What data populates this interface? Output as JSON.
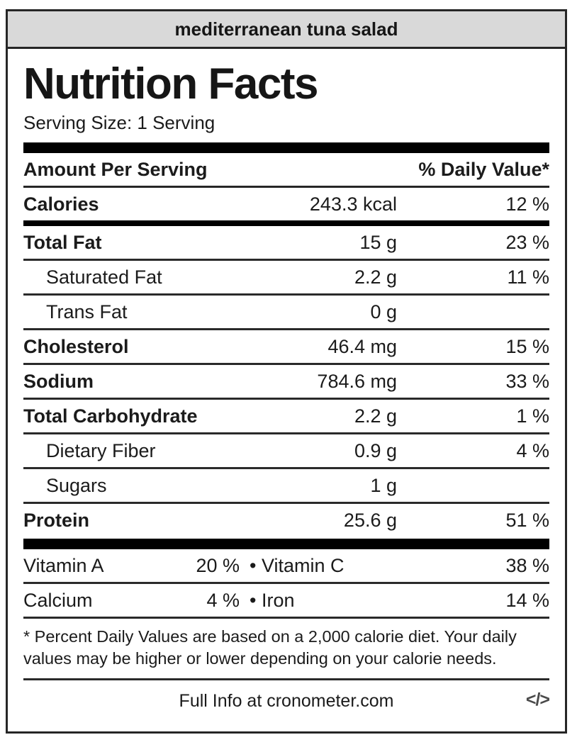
{
  "colors": {
    "header_bg": "#d9d9d9",
    "frame_border": "#262626",
    "text": "#1b1b1b",
    "bar": "#000000",
    "embed_icon": "#4a4a4a"
  },
  "header": {
    "title": "mediterranean tuna salad"
  },
  "label": {
    "title": "Nutrition Facts",
    "serving_size": "Serving Size: 1 Serving",
    "amount_header": "Amount Per Serving",
    "daily_value_header": "% Daily Value*",
    "rows": [
      {
        "name": "Calories",
        "amount": "243.3 kcal",
        "dv": "12 %",
        "bold": true,
        "indent": false,
        "thick_bar_after": true
      },
      {
        "name": "Total Fat",
        "amount": "15 g",
        "dv": "23 %",
        "bold": true,
        "indent": false
      },
      {
        "name": "Saturated Fat",
        "amount": "2.2 g",
        "dv": "11 %",
        "bold": false,
        "indent": true
      },
      {
        "name": "Trans Fat",
        "amount": "0 g",
        "dv": "",
        "bold": false,
        "indent": true
      },
      {
        "name": "Cholesterol",
        "amount": "46.4 mg",
        "dv": "15 %",
        "bold": true,
        "indent": false
      },
      {
        "name": "Sodium",
        "amount": "784.6 mg",
        "dv": "33 %",
        "bold": true,
        "indent": false
      },
      {
        "name": "Total Carbohydrate",
        "amount": "2.2 g",
        "dv": "1 %",
        "bold": true,
        "indent": false
      },
      {
        "name": "Dietary Fiber",
        "amount": "0.9 g",
        "dv": "4 %",
        "bold": false,
        "indent": true
      },
      {
        "name": "Sugars",
        "amount": "1 g",
        "dv": "",
        "bold": false,
        "indent": true
      },
      {
        "name": "Protein",
        "amount": "25.6 g",
        "dv": "51 %",
        "bold": true,
        "indent": false,
        "last": true
      }
    ],
    "micros_bullet": "•",
    "micros": [
      {
        "left": "Vitamin A",
        "left_value": "20 %",
        "right": "Vitamin C",
        "right_value": "38 %"
      },
      {
        "left": "Calcium",
        "left_value": "4 %",
        "right": "Iron",
        "right_value": "14 %"
      }
    ],
    "footnote": "* Percent Daily Values are based on a 2,000 calorie diet. Your daily values may be higher or lower depending on your calorie needs.",
    "footer": {
      "link_text": "Full Info at cronometer.com",
      "embed_icon": "</>"
    }
  }
}
